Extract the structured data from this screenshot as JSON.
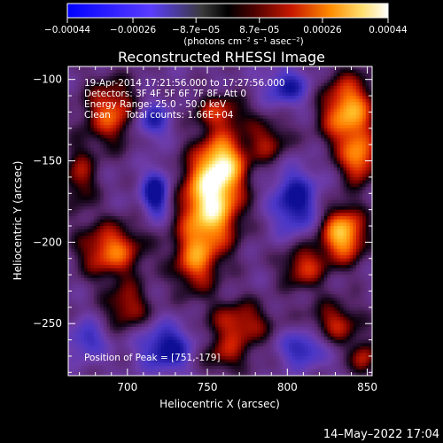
{
  "chart_data": {
    "type": "heatmap",
    "title": "Reconstructed RHESSI Image",
    "xlabel": "Heliocentric X (arcsec)",
    "ylabel": "Heliocentric Y (arcsec)",
    "xlim": [
      663,
      853
    ],
    "ylim": [
      -282,
      -92
    ],
    "x_ticks": [
      700,
      750,
      800,
      850
    ],
    "y_ticks": [
      -100,
      -150,
      -200,
      -250
    ],
    "x_tick_labels": [
      "700",
      "750",
      "800",
      "850"
    ],
    "y_tick_labels": [
      "−100",
      "−150",
      "−200",
      "−250"
    ],
    "colorbar": {
      "range": [
        -0.00044,
        0.00044
      ],
      "ticks": [
        -0.00044,
        -0.00026,
        -8.7e-05,
        8.7e-05,
        0.00026,
        0.00044
      ],
      "tick_labels": [
        "−0.00044",
        "−0.00026",
        "−8.7e−05",
        "8.7e−05",
        "0.00026",
        "0.00044"
      ],
      "unit_label": "(photons cm⁻² s⁻¹ asec⁻²)"
    },
    "annotations": [
      "19-Apr-2014 17:21:56.000 to 17:27:56.000",
      "Detectors: 3F 4F 5F 6F 7F 8F, Att 0",
      "Energy Range: 25.0 - 50.0 keV",
      "Clean     Total counts: 1.66E+04"
    ],
    "peak_label": "Position of Peak = [751,-179]",
    "peak": {
      "x": 751,
      "y": -179
    },
    "blobs": [
      {
        "x": 752,
        "y": -175,
        "sx": 13,
        "sy": 20,
        "a": 1.0
      },
      {
        "x": 760,
        "y": -150,
        "sx": 10,
        "sy": 12,
        "a": 0.65
      },
      {
        "x": 742,
        "y": -212,
        "sx": 10,
        "sy": 14,
        "a": 0.55
      },
      {
        "x": 770,
        "y": -250,
        "sx": 14,
        "sy": 10,
        "a": 0.5
      },
      {
        "x": 758,
        "y": -120,
        "sx": 12,
        "sy": 8,
        "a": 0.45
      },
      {
        "x": 788,
        "y": -138,
        "sx": 10,
        "sy": 10,
        "a": 0.4
      },
      {
        "x": 838,
        "y": -120,
        "sx": 12,
        "sy": 16,
        "a": 0.8
      },
      {
        "x": 845,
        "y": -150,
        "sx": 8,
        "sy": 10,
        "a": 0.6
      },
      {
        "x": 835,
        "y": -195,
        "sx": 10,
        "sy": 12,
        "a": 0.85
      },
      {
        "x": 810,
        "y": -215,
        "sx": 10,
        "sy": 10,
        "a": 0.5
      },
      {
        "x": 830,
        "y": -250,
        "sx": 12,
        "sy": 10,
        "a": 0.45
      },
      {
        "x": 690,
        "y": -120,
        "sx": 12,
        "sy": 14,
        "a": 0.6
      },
      {
        "x": 690,
        "y": -205,
        "sx": 14,
        "sy": 12,
        "a": 0.65
      },
      {
        "x": 700,
        "y": -240,
        "sx": 10,
        "sy": 10,
        "a": 0.45
      },
      {
        "x": 670,
        "y": -160,
        "sx": 8,
        "sy": 14,
        "a": 0.4
      },
      {
        "x": 760,
        "y": -270,
        "sx": 12,
        "sy": 8,
        "a": 0.35
      },
      {
        "x": 848,
        "y": -272,
        "sx": 6,
        "sy": 8,
        "a": 0.45
      },
      {
        "x": 718,
        "y": -170,
        "sx": 6,
        "sy": 10,
        "a": -0.7
      },
      {
        "x": 725,
        "y": -265,
        "sx": 12,
        "sy": 10,
        "a": -0.6
      },
      {
        "x": 805,
        "y": -175,
        "sx": 10,
        "sy": 14,
        "a": -0.6
      },
      {
        "x": 800,
        "y": -105,
        "sx": 10,
        "sy": 8,
        "a": -0.5
      },
      {
        "x": 715,
        "y": -125,
        "sx": 8,
        "sy": 8,
        "a": -0.5
      },
      {
        "x": 810,
        "y": -265,
        "sx": 10,
        "sy": 8,
        "a": -0.5
      },
      {
        "x": 675,
        "y": -260,
        "sx": 8,
        "sy": 8,
        "a": -0.4
      }
    ]
  },
  "footer": {
    "timestamp": "14–May–2022 17:04"
  }
}
